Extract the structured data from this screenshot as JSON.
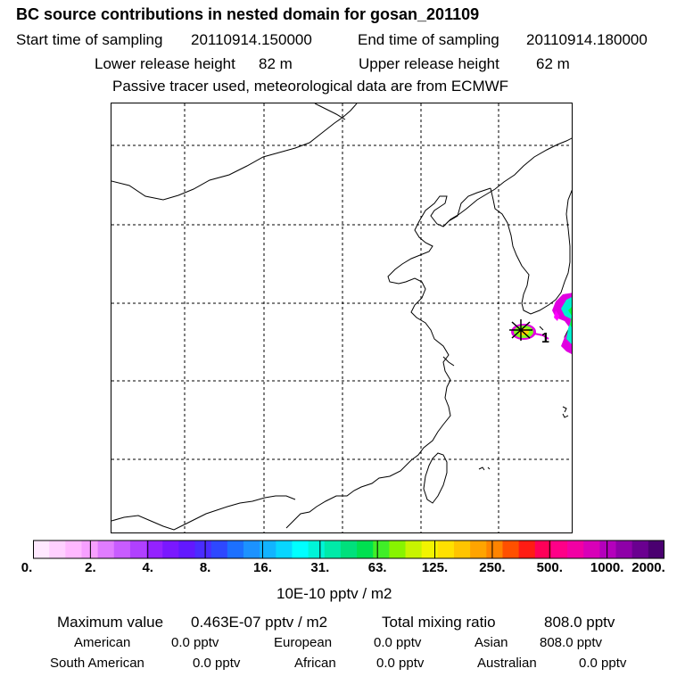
{
  "header": {
    "title": "BC  source contributions in nested domain for gosan_201109",
    "start_label": "Start time of sampling",
    "start_value": "20110914.150000",
    "end_label": "End time of sampling",
    "end_value": "20110914.180000",
    "lower_label": "Lower release height",
    "lower_value": "82 m",
    "upper_label": "Upper release height",
    "upper_value": "62 m",
    "info": "Passive tracer used, meteorological data are from ECMWF"
  },
  "map": {
    "station_marker": "1",
    "release_icon": "star-icon"
  },
  "colorbar": {
    "colors": [
      "#ffe8ff",
      "#ffd0ff",
      "#ffb8ff",
      "#f7a0ff",
      "#e07cff",
      "#c85cff",
      "#b040ff",
      "#9422ff",
      "#7a18ff",
      "#6218ff",
      "#4a2cff",
      "#2e48ff",
      "#1c70ff",
      "#1c92ff",
      "#12b4ff",
      "#08d6ff",
      "#00ffff",
      "#00f4d8",
      "#00eaa8",
      "#00e07c",
      "#00e050",
      "#40ee28",
      "#88f400",
      "#c8f400",
      "#f2f400",
      "#ffe000",
      "#ffc400",
      "#ffa400",
      "#ff8400",
      "#ff5000",
      "#ff1c14",
      "#ff0058",
      "#ff0088",
      "#f200a4",
      "#d800b8",
      "#b400bc",
      "#8e00a8",
      "#6a0090",
      "#4a0070"
    ],
    "tick_labels": [
      "0.",
      "2.",
      "4.",
      "8.",
      "16.",
      "31.",
      "63.",
      "125.",
      "250.",
      "500.",
      "1000.",
      "2000."
    ],
    "unit": "10E-10 pptv / m2"
  },
  "summary": {
    "max_label": "Maximum value",
    "max_value": "0.463E-07 pptv / m2",
    "total_label": "Total mixing ratio",
    "total_value": "808.0 pptv",
    "american_label": "American",
    "american_value": "0.0 pptv",
    "european_label": "European",
    "european_value": "0.0 pptv",
    "asian_label": "Asian",
    "asian_value": "808.0 pptv",
    "south_american_label": "South American",
    "south_american_value": "0.0 pptv",
    "african_label": "African",
    "african_value": "0.0 pptv",
    "australian_label": "Australian",
    "australian_value": "0.0 pptv"
  }
}
